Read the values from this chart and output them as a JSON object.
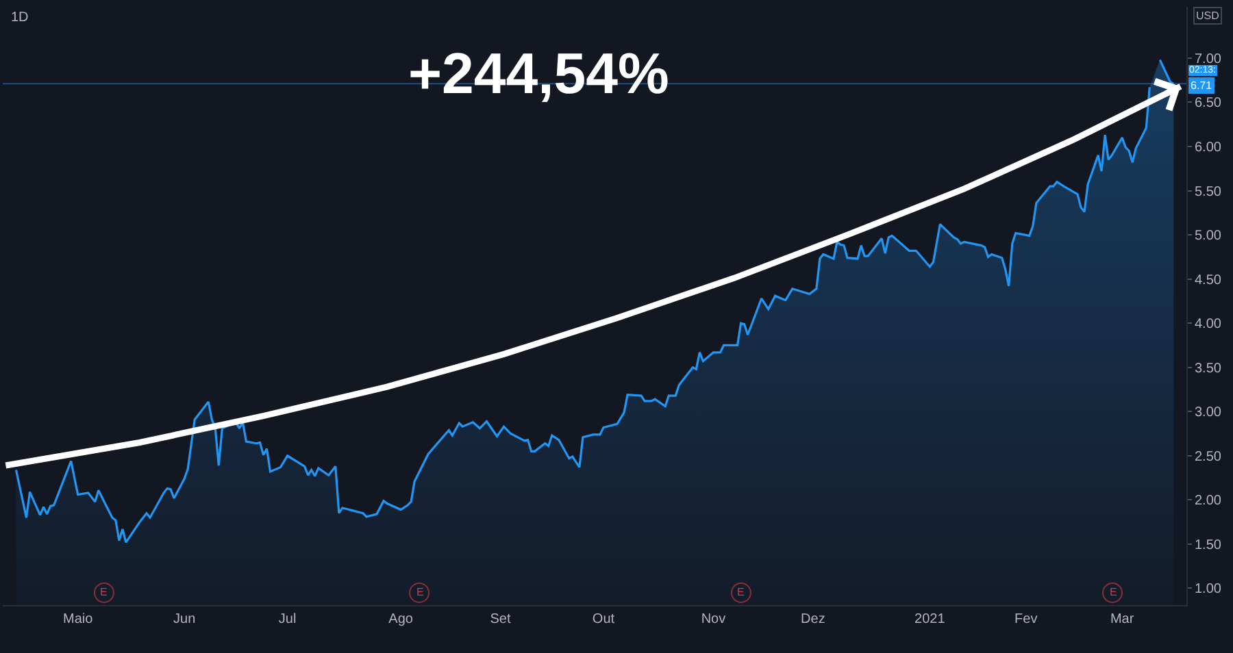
{
  "chart_data": {
    "type": "area",
    "title": "1D",
    "ylabel": "USD",
    "x": [
      "2020-04-13",
      "2020-04-16",
      "2020-04-17",
      "2020-04-20",
      "2020-04-21",
      "2020-04-22",
      "2020-04-23",
      "2020-04-24",
      "2020-04-29",
      "2020-05-01",
      "2020-05-04",
      "2020-05-06",
      "2020-05-07",
      "2020-05-08",
      "2020-05-11",
      "2020-05-12",
      "2020-05-13",
      "2020-05-14",
      "2020-05-15",
      "2020-05-19",
      "2020-05-20",
      "2020-05-21",
      "2020-05-22",
      "2020-05-26",
      "2020-05-27",
      "2020-05-28",
      "2020-05-29",
      "2020-06-01",
      "2020-06-02",
      "2020-06-04",
      "2020-06-08",
      "2020-06-09",
      "2020-06-10",
      "2020-06-11",
      "2020-06-12",
      "2020-06-16",
      "2020-06-17",
      "2020-06-18",
      "2020-06-19",
      "2020-06-22",
      "2020-06-23",
      "2020-06-24",
      "2020-06-25",
      "2020-06-26",
      "2020-06-29",
      "2020-07-01",
      "2020-07-06",
      "2020-07-07",
      "2020-07-08",
      "2020-07-09",
      "2020-07-10",
      "2020-07-13",
      "2020-07-14",
      "2020-07-15",
      "2020-07-16",
      "2020-07-17",
      "2020-07-20",
      "2020-07-22",
      "2020-07-23",
      "2020-07-24",
      "2020-07-27",
      "2020-07-29",
      "2020-07-30",
      "2020-08-03",
      "2020-08-05",
      "2020-08-06",
      "2020-08-07",
      "2020-08-11",
      "2020-08-13",
      "2020-08-17",
      "2020-08-18",
      "2020-08-20",
      "2020-08-21",
      "2020-08-24",
      "2020-08-26",
      "2020-08-28",
      "2020-08-31",
      "2020-09-02",
      "2020-09-04",
      "2020-09-08",
      "2020-09-09",
      "2020-09-10",
      "2020-09-11",
      "2020-09-14",
      "2020-09-15",
      "2020-09-16",
      "2020-09-18",
      "2020-09-21",
      "2020-09-22",
      "2020-09-24",
      "2020-09-25",
      "2020-09-28",
      "2020-09-30",
      "2020-10-01",
      "2020-10-05",
      "2020-10-07",
      "2020-10-08",
      "2020-10-12",
      "2020-10-13",
      "2020-10-15",
      "2020-10-16",
      "2020-10-19",
      "2020-10-20",
      "2020-10-22",
      "2020-10-23",
      "2020-10-27",
      "2020-10-28",
      "2020-10-29",
      "2020-10-30",
      "2020-11-02",
      "2020-11-04",
      "2020-11-05",
      "2020-11-09",
      "2020-11-10",
      "2020-11-11",
      "2020-11-12",
      "2020-11-13",
      "2020-11-16",
      "2020-11-18",
      "2020-11-20",
      "2020-11-23",
      "2020-11-25",
      "2020-11-30",
      "2020-12-02",
      "2020-12-03",
      "2020-12-04",
      "2020-12-07",
      "2020-12-08",
      "2020-12-09",
      "2020-12-10",
      "2020-12-11",
      "2020-12-14",
      "2020-12-15",
      "2020-12-16",
      "2020-12-17",
      "2020-12-21",
      "2020-12-22",
      "2020-12-23",
      "2020-12-24",
      "2020-12-29",
      "2020-12-31",
      "2021-01-04",
      "2021-01-05",
      "2021-01-07",
      "2021-01-11",
      "2021-01-12",
      "2021-01-13",
      "2021-01-14",
      "2021-01-19",
      "2021-01-20",
      "2021-01-21",
      "2021-01-22",
      "2021-01-25",
      "2021-01-26",
      "2021-01-27",
      "2021-01-28",
      "2021-01-29",
      "2021-02-02",
      "2021-02-03",
      "2021-02-04",
      "2021-02-08",
      "2021-02-09",
      "2021-02-10",
      "2021-02-12",
      "2021-02-16",
      "2021-02-17",
      "2021-02-18",
      "2021-02-19",
      "2021-02-22",
      "2021-02-23",
      "2021-02-24",
      "2021-02-25",
      "2021-02-26",
      "2021-03-01",
      "2021-03-02",
      "2021-03-03",
      "2021-03-04",
      "2021-03-05",
      "2021-03-08",
      "2021-03-09",
      "2021-03-11",
      "2021-03-12",
      "2021-03-15",
      "2021-03-16"
    ],
    "series": [
      {
        "color": "#2196f3",
        "values": [
          2.34,
          1.8,
          2.09,
          1.83,
          1.92,
          1.84,
          1.93,
          1.94,
          2.44,
          2.06,
          2.08,
          1.98,
          2.11,
          2.03,
          1.8,
          1.77,
          1.54,
          1.67,
          1.52,
          1.75,
          1.8,
          1.85,
          1.8,
          2.08,
          2.13,
          2.12,
          2.02,
          2.24,
          2.35,
          2.91,
          3.11,
          2.91,
          2.81,
          2.39,
          2.81,
          2.88,
          2.81,
          2.88,
          2.66,
          2.64,
          2.65,
          2.51,
          2.58,
          2.32,
          2.37,
          2.5,
          2.38,
          2.28,
          2.34,
          2.27,
          2.36,
          2.28,
          2.33,
          2.38,
          1.85,
          1.91,
          1.88,
          1.86,
          1.85,
          1.81,
          1.84,
          1.99,
          1.96,
          1.89,
          1.94,
          1.98,
          2.21,
          2.52,
          2.61,
          2.79,
          2.73,
          2.87,
          2.83,
          2.88,
          2.81,
          2.89,
          2.72,
          2.83,
          2.75,
          2.67,
          2.68,
          2.55,
          2.55,
          2.64,
          2.61,
          2.73,
          2.68,
          2.47,
          2.49,
          2.37,
          2.71,
          2.74,
          2.74,
          2.82,
          2.86,
          2.99,
          3.19,
          3.18,
          3.12,
          3.12,
          3.14,
          3.06,
          3.18,
          3.18,
          3.3,
          3.5,
          3.48,
          3.67,
          3.57,
          3.67,
          3.67,
          3.75,
          3.75,
          4.0,
          3.99,
          3.87,
          3.97,
          4.28,
          4.16,
          4.31,
          4.26,
          4.39,
          4.33,
          4.39,
          4.73,
          4.78,
          4.73,
          4.92,
          4.89,
          4.88,
          4.74,
          4.73,
          4.88,
          4.76,
          4.76,
          4.96,
          4.79,
          4.97,
          4.99,
          4.82,
          4.82,
          4.64,
          4.69,
          5.12,
          4.97,
          4.95,
          4.9,
          4.92,
          4.88,
          4.86,
          4.75,
          4.78,
          4.74,
          4.61,
          4.42,
          4.9,
          5.02,
          4.99,
          5.1,
          5.36,
          5.55,
          5.55,
          5.6,
          5.55,
          5.46,
          5.31,
          5.26,
          5.57,
          5.9,
          5.72,
          6.13,
          5.85,
          5.9,
          6.1,
          5.99,
          5.95,
          5.82,
          5.98,
          6.21,
          6.67,
          null,
          6.98,
          6.73,
          6.71
        ]
      },
      {
        "type": "line",
        "color": "#ffffff",
        "x": [
          "2020-04-10",
          "2020-05-19",
          "2020-06-24",
          "2020-07-30",
          "2020-09-02",
          "2020-10-05",
          "2020-11-08",
          "2020-12-11",
          "2021-01-14",
          "2021-02-15",
          "2021-03-18"
        ],
        "values": [
          2.39,
          2.65,
          2.95,
          3.28,
          3.65,
          4.06,
          4.51,
          5.0,
          5.52,
          6.08,
          6.68
        ]
      }
    ],
    "xlim": [
      "2020-04-09T03:00",
      "2021-03-19T17:00"
    ],
    "xticks": [
      {
        "value": "2020-05-01",
        "label": "Maio"
      },
      {
        "value": "2020-06-01",
        "label": "Jun"
      },
      {
        "value": "2020-07-01",
        "label": "Jul"
      },
      {
        "value": "2020-08-03",
        "label": "Ago"
      },
      {
        "value": "2020-09-01",
        "label": "Set"
      },
      {
        "value": "2020-10-01",
        "label": "Out"
      },
      {
        "value": "2020-11-02",
        "label": "Nov"
      },
      {
        "value": "2020-12-01",
        "label": "Dez"
      },
      {
        "value": "2021-01-04",
        "label": "2021"
      },
      {
        "value": "2021-02-01",
        "label": "Fev"
      },
      {
        "value": "2021-03-01",
        "label": "Mar"
      }
    ],
    "ylim": [
      0.81,
      7.58
    ],
    "yticks": [
      {
        "value": 1,
        "label": "1.00"
      },
      {
        "value": 1.5,
        "label": "1.50"
      },
      {
        "value": 2,
        "label": "2.00"
      },
      {
        "value": 2.5,
        "label": "2.50"
      },
      {
        "value": 3,
        "label": "3.00"
      },
      {
        "value": 3.5,
        "label": "3.50"
      },
      {
        "value": 4,
        "label": "4.00"
      },
      {
        "value": 4.5,
        "label": "4.50"
      },
      {
        "value": 5,
        "label": "5.00"
      },
      {
        "value": 5.5,
        "label": "5.50"
      },
      {
        "value": 6,
        "label": "6.00"
      },
      {
        "value": 6.5,
        "label": "6.50"
      },
      {
        "value": 7,
        "label": "7.00"
      }
    ],
    "ref_lines": [
      {
        "axis": "y",
        "value": 6.71,
        "label": "6.71",
        "color": "#1f4e85"
      }
    ],
    "annotations": [
      "+244,54%",
      "02:13:",
      "E",
      "E",
      "E",
      "E"
    ],
    "grid": false
  }
}
